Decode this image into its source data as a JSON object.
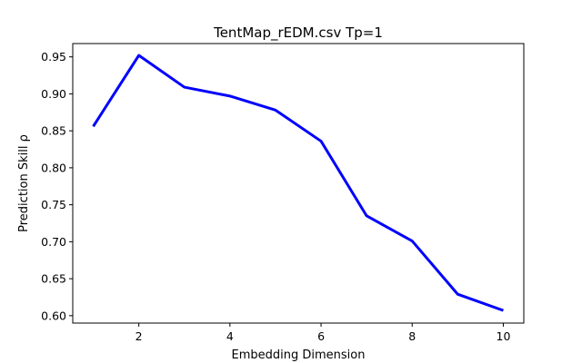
{
  "chart_data": {
    "type": "line",
    "title": "TentMap_rEDM.csv Tp=1",
    "xlabel": "Embedding Dimension",
    "ylabel": "Prediction Skill ρ",
    "xlim": [
      0.55,
      10.45
    ],
    "ylim": [
      0.59,
      0.968
    ],
    "xticks": [
      2,
      4,
      6,
      8,
      10
    ],
    "yticks": [
      0.6,
      0.65,
      0.7,
      0.75,
      0.8,
      0.85,
      0.9,
      0.95
    ],
    "ytick_labels": [
      "0.60",
      "0.65",
      "0.70",
      "0.75",
      "0.80",
      "0.85",
      "0.90",
      "0.95"
    ],
    "grid": false,
    "series": [
      {
        "color": "#0000ff",
        "x": [
          1,
          2,
          3,
          4,
          5,
          6,
          7,
          8,
          9,
          10
        ],
        "y": [
          0.856,
          0.952,
          0.909,
          0.897,
          0.878,
          0.836,
          0.735,
          0.701,
          0.629,
          0.607
        ]
      }
    ]
  }
}
